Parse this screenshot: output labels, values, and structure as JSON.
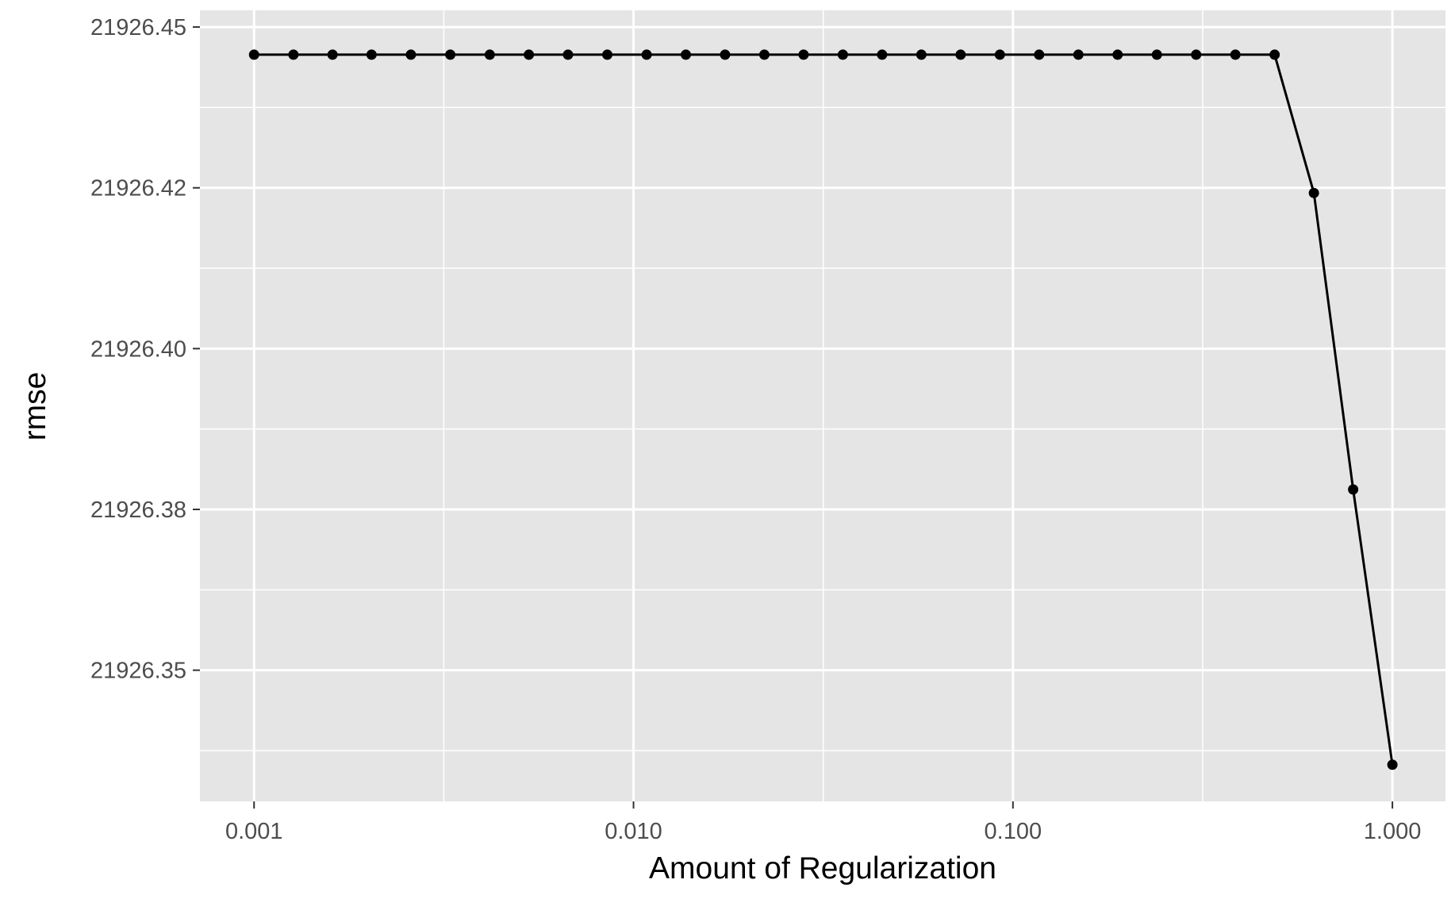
{
  "chart_data": {
    "type": "line",
    "title": "",
    "xlabel": "Amount of Regularization",
    "ylabel": "rmse",
    "x_scale": "log10",
    "xlim": [
      0.00072,
      1.38
    ],
    "ylim": [
      21926.3296,
      21926.4526
    ],
    "x_ticks": [
      0.001,
      0.01,
      0.1,
      1
    ],
    "x_tick_labels": [
      "0.001",
      "0.010",
      "0.100",
      "1.000"
    ],
    "y_ticks": [
      21926.35,
      21926.375,
      21926.4,
      21926.425,
      21926.45
    ],
    "y_tick_labels": [
      "21926.35",
      "21926.38",
      "21926.40",
      "21926.42",
      "21926.45"
    ],
    "grid": true,
    "legend": "none",
    "colors": {
      "panel": "#e5e5e5",
      "grid": "#ffffff",
      "line": "#000000",
      "tick_text": "#4d4d4d"
    },
    "series": [
      {
        "x": [
          0.001,
          0.00127,
          0.00161,
          0.00204,
          0.00259,
          0.00329,
          0.00418,
          0.0053,
          0.00672,
          0.00853,
          0.01083,
          0.01374,
          0.01743,
          0.02212,
          0.02807,
          0.03562,
          0.0452,
          0.05736,
          0.07279,
          0.09237,
          0.11721,
          0.14874,
          0.18874,
          0.23951,
          0.30392,
          0.38566,
          0.48939,
          0.62102,
          0.78805,
          1.0
        ],
        "y": [
          21926.4457,
          21926.4457,
          21926.4457,
          21926.4457,
          21926.4457,
          21926.4457,
          21926.4457,
          21926.4457,
          21926.4457,
          21926.4457,
          21926.4457,
          21926.4457,
          21926.4457,
          21926.4457,
          21926.4457,
          21926.4457,
          21926.4457,
          21926.4457,
          21926.4457,
          21926.4457,
          21926.4457,
          21926.4457,
          21926.4457,
          21926.4457,
          21926.4457,
          21926.4457,
          21926.4457,
          21926.4242,
          21926.3781,
          21926.3353
        ]
      }
    ]
  }
}
